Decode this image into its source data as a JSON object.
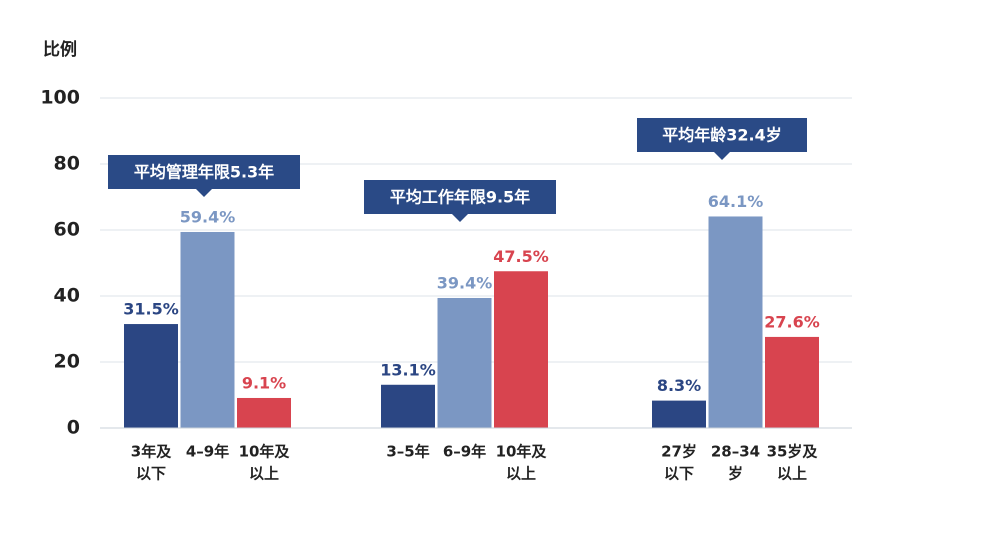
{
  "chart_data": {
    "type": "bar",
    "y_label": "比例",
    "ylim": [
      0,
      100
    ],
    "yticks": [
      0,
      20,
      40,
      60,
      80,
      100
    ],
    "grid": true,
    "colors": [
      "#2b4683",
      "#7b97c3",
      "#d8444f"
    ],
    "groups": [
      {
        "callout": "平均管理年限5.3年",
        "categories": [
          [
            "3年及",
            "以下"
          ],
          [
            "4–9年"
          ],
          [
            "10年及",
            "以上"
          ]
        ],
        "values": [
          31.5,
          59.4,
          9.1
        ],
        "value_labels": [
          "31.5%",
          "59.4%",
          "9.1%"
        ]
      },
      {
        "callout": "平均工作年限9.5年",
        "categories": [
          [
            "3–5年"
          ],
          [
            "6–9年"
          ],
          [
            "10年及",
            "以上"
          ]
        ],
        "values": [
          13.1,
          39.4,
          47.5
        ],
        "value_labels": [
          "13.1%",
          "39.4%",
          "47.5%"
        ]
      },
      {
        "callout": "平均年龄32.4岁",
        "categories": [
          [
            "27岁",
            "以下"
          ],
          [
            "28–34",
            "岁"
          ],
          [
            "35岁及",
            "以上"
          ]
        ],
        "values": [
          8.3,
          64.1,
          27.6
        ],
        "value_labels": [
          "8.3%",
          "64.1%",
          "27.6%"
        ]
      }
    ]
  }
}
